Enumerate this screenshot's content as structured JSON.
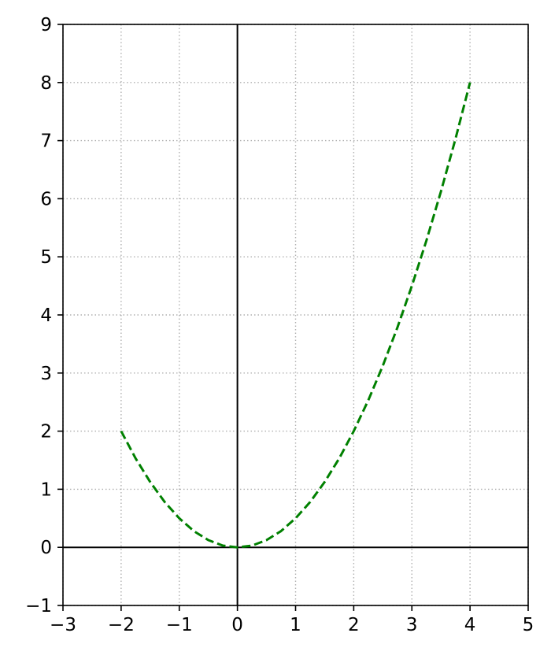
{
  "chart_data": {
    "type": "line",
    "title": "",
    "xlabel": "",
    "ylabel": "",
    "xlim": [
      -3,
      5
    ],
    "ylim": [
      -1,
      9
    ],
    "x_ticks": [
      -3,
      -2,
      -1,
      0,
      1,
      2,
      3,
      4,
      5
    ],
    "y_ticks": [
      -1,
      0,
      1,
      2,
      3,
      4,
      5,
      6,
      7,
      8,
      9
    ],
    "x_tick_labels": [
      "−3",
      "−2",
      "−1",
      "0",
      "1",
      "2",
      "3",
      "4",
      "5"
    ],
    "y_tick_labels": [
      "−1",
      "0",
      "1",
      "2",
      "3",
      "4",
      "5",
      "6",
      "7",
      "8",
      "9"
    ],
    "grid": true,
    "grid_style": "dotted",
    "axis_lines_through_origin": true,
    "legend": "none",
    "series": [
      {
        "line_style": "dashed",
        "color": "#008000",
        "x": [
          -2,
          -1.75,
          -1.5,
          -1.25,
          -1,
          -0.75,
          -0.5,
          -0.25,
          0,
          0.25,
          0.5,
          0.75,
          1,
          1.25,
          1.5,
          1.75,
          2,
          2.25,
          2.5,
          2.75,
          3,
          3.25,
          3.5,
          3.75,
          4
        ],
        "y": [
          2,
          1.53,
          1.125,
          0.78,
          0.5,
          0.28,
          0.125,
          0.03,
          0,
          0.03,
          0.125,
          0.28,
          0.5,
          0.78,
          1.125,
          1.53,
          2,
          2.53,
          3.125,
          3.78,
          4.5,
          5.28,
          6.125,
          7.03,
          8
        ]
      }
    ]
  }
}
